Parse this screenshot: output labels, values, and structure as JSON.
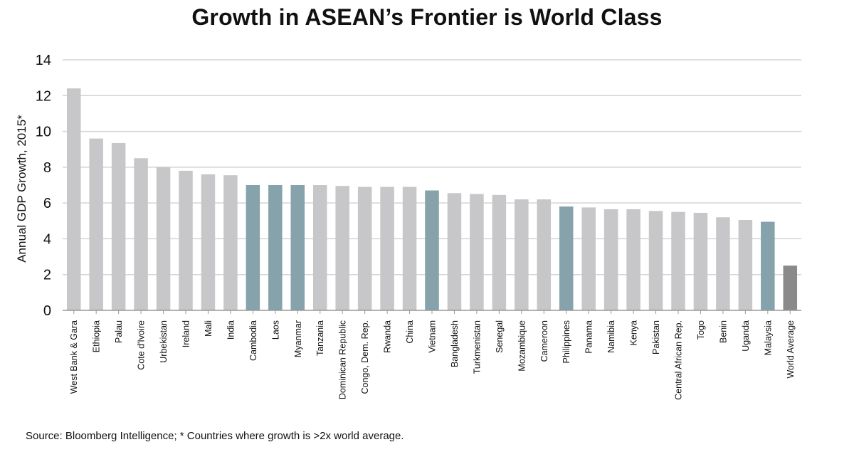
{
  "chart_data": {
    "type": "bar",
    "title": "Growth in ASEAN’s Frontier is World Class",
    "ylabel": "Annual GDP Growth, 2015*",
    "xlabel": "",
    "ylim": [
      0,
      14
    ],
    "yticks": [
      0,
      2,
      4,
      6,
      8,
      10,
      12,
      14
    ],
    "grid": true,
    "source": "Source: Bloomberg Intelligence; * Countries where growth is >2x world average.",
    "categories": [
      "West Bank & Gara",
      "Ethiopia",
      "Palau",
      "Cote d'Ivoire",
      "Urbekistan",
      "Ireland",
      "Mali",
      "India",
      "Cambodia",
      "Laos",
      "Myanmar",
      "Tanzania",
      "Dominican Republic",
      "Congo, Dem. Rep.",
      "Rwanda",
      "China",
      "Vietnam",
      "Bangladesh",
      "Turkmenistan",
      "Senegal",
      "Mozambique",
      "Cameroon",
      "Philippines",
      "Panama",
      "Namibia",
      "Kenya",
      "Pakistan",
      "Central African Rep.",
      "Togo",
      "Benin",
      "Uganda",
      "Malaysia",
      "World Average"
    ],
    "values": [
      12.4,
      9.6,
      9.35,
      8.5,
      8.0,
      7.8,
      7.6,
      7.55,
      7.0,
      7.0,
      7.0,
      7.0,
      6.95,
      6.9,
      6.9,
      6.9,
      6.7,
      6.55,
      6.5,
      6.45,
      6.2,
      6.2,
      5.8,
      5.75,
      5.65,
      5.65,
      5.55,
      5.5,
      5.45,
      5.2,
      5.05,
      4.95,
      2.5
    ],
    "groups": [
      "other",
      "other",
      "other",
      "other",
      "other",
      "other",
      "other",
      "other",
      "asean",
      "asean",
      "asean",
      "other",
      "other",
      "other",
      "other",
      "other",
      "asean",
      "other",
      "other",
      "other",
      "other",
      "other",
      "asean",
      "other",
      "other",
      "other",
      "other",
      "other",
      "other",
      "other",
      "other",
      "asean",
      "world"
    ],
    "colors": {
      "other": "#c7c6c8",
      "asean": "#86a2ab",
      "world": "#8a8a8a",
      "grid": "#d4d4d4",
      "axis": "#999999"
    }
  }
}
